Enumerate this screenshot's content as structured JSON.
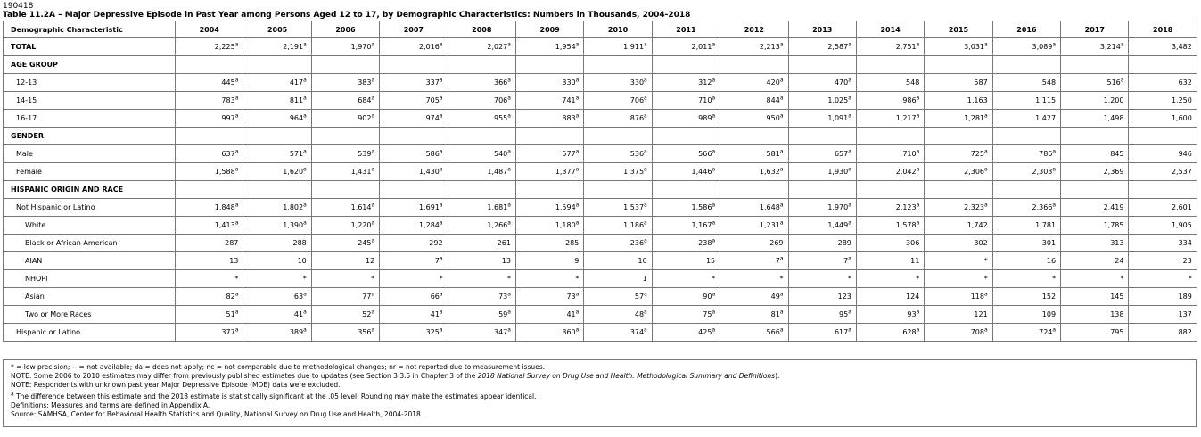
{
  "doc_id": "190418",
  "title": "Table 11.2A – Major Depressive Episode in Past Year among Persons Aged 12 to 17, by Demographic Characteristics: Numbers in Thousands, 2004-2018",
  "table": {
    "header_first": "Demographic Characteristic",
    "years": [
      "2004",
      "2005",
      "2006",
      "2007",
      "2008",
      "2009",
      "2010",
      "2011",
      "2012",
      "2013",
      "2014",
      "2015",
      "2016",
      "2017",
      "2018"
    ],
    "rows": [
      {
        "kind": "data",
        "level": 0,
        "bold": true,
        "label": "TOTAL",
        "values": [
          [
            "2,225",
            "a"
          ],
          [
            "2,191",
            "a"
          ],
          [
            "1,970",
            "a"
          ],
          [
            "2,016",
            "a"
          ],
          [
            "2,027",
            "a"
          ],
          [
            "1,954",
            "a"
          ],
          [
            "1,911",
            "a"
          ],
          [
            "2,011",
            "a"
          ],
          [
            "2,213",
            "a"
          ],
          [
            "2,587",
            "a"
          ],
          [
            "2,751",
            "a"
          ],
          [
            "3,031",
            "a"
          ],
          [
            "3,089",
            "a"
          ],
          [
            "3,214",
            "a"
          ],
          [
            "3,482",
            ""
          ]
        ]
      },
      {
        "kind": "heading",
        "label": "AGE GROUP"
      },
      {
        "kind": "data",
        "level": 1,
        "label": "12-13",
        "values": [
          [
            "445",
            "a"
          ],
          [
            "417",
            "a"
          ],
          [
            "383",
            "a"
          ],
          [
            "337",
            "a"
          ],
          [
            "366",
            "a"
          ],
          [
            "330",
            "a"
          ],
          [
            "330",
            "a"
          ],
          [
            "312",
            "a"
          ],
          [
            "420",
            "a"
          ],
          [
            "470",
            "a"
          ],
          [
            "548",
            ""
          ],
          [
            "587",
            ""
          ],
          [
            "548",
            ""
          ],
          [
            "516",
            "a"
          ],
          [
            "632",
            ""
          ]
        ]
      },
      {
        "kind": "data",
        "level": 1,
        "label": "14-15",
        "values": [
          [
            "783",
            "a"
          ],
          [
            "811",
            "a"
          ],
          [
            "684",
            "a"
          ],
          [
            "705",
            "a"
          ],
          [
            "706",
            "a"
          ],
          [
            "741",
            "a"
          ],
          [
            "706",
            "a"
          ],
          [
            "710",
            "a"
          ],
          [
            "844",
            "a"
          ],
          [
            "1,025",
            "a"
          ],
          [
            "986",
            "a"
          ],
          [
            "1,163",
            ""
          ],
          [
            "1,115",
            ""
          ],
          [
            "1,200",
            ""
          ],
          [
            "1,250",
            ""
          ]
        ]
      },
      {
        "kind": "data",
        "level": 1,
        "label": "16-17",
        "values": [
          [
            "997",
            "a"
          ],
          [
            "964",
            "a"
          ],
          [
            "902",
            "a"
          ],
          [
            "974",
            "a"
          ],
          [
            "955",
            "a"
          ],
          [
            "883",
            "a"
          ],
          [
            "876",
            "a"
          ],
          [
            "989",
            "a"
          ],
          [
            "950",
            "a"
          ],
          [
            "1,091",
            "a"
          ],
          [
            "1,217",
            "a"
          ],
          [
            "1,281",
            "a"
          ],
          [
            "1,427",
            ""
          ],
          [
            "1,498",
            ""
          ],
          [
            "1,600",
            ""
          ]
        ]
      },
      {
        "kind": "heading",
        "label": "GENDER"
      },
      {
        "kind": "data",
        "level": 1,
        "label": "Male",
        "values": [
          [
            "637",
            "a"
          ],
          [
            "571",
            "a"
          ],
          [
            "539",
            "a"
          ],
          [
            "586",
            "a"
          ],
          [
            "540",
            "a"
          ],
          [
            "577",
            "a"
          ],
          [
            "536",
            "a"
          ],
          [
            "566",
            "a"
          ],
          [
            "581",
            "a"
          ],
          [
            "657",
            "a"
          ],
          [
            "710",
            "a"
          ],
          [
            "725",
            "a"
          ],
          [
            "786",
            "a"
          ],
          [
            "845",
            ""
          ],
          [
            "946",
            ""
          ]
        ]
      },
      {
        "kind": "data",
        "level": 1,
        "label": "Female",
        "values": [
          [
            "1,588",
            "a"
          ],
          [
            "1,620",
            "a"
          ],
          [
            "1,431",
            "a"
          ],
          [
            "1,430",
            "a"
          ],
          [
            "1,487",
            "a"
          ],
          [
            "1,377",
            "a"
          ],
          [
            "1,375",
            "a"
          ],
          [
            "1,446",
            "a"
          ],
          [
            "1,632",
            "a"
          ],
          [
            "1,930",
            "a"
          ],
          [
            "2,042",
            "a"
          ],
          [
            "2,306",
            "a"
          ],
          [
            "2,303",
            "a"
          ],
          [
            "2,369",
            ""
          ],
          [
            "2,537",
            ""
          ]
        ]
      },
      {
        "kind": "heading",
        "label": "HISPANIC ORIGIN AND RACE"
      },
      {
        "kind": "data",
        "level": 1,
        "label": "Not Hispanic or Latino",
        "values": [
          [
            "1,848",
            "a"
          ],
          [
            "1,802",
            "a"
          ],
          [
            "1,614",
            "a"
          ],
          [
            "1,691",
            "a"
          ],
          [
            "1,681",
            "a"
          ],
          [
            "1,594",
            "a"
          ],
          [
            "1,537",
            "a"
          ],
          [
            "1,586",
            "a"
          ],
          [
            "1,648",
            "a"
          ],
          [
            "1,970",
            "a"
          ],
          [
            "2,123",
            "a"
          ],
          [
            "2,323",
            "a"
          ],
          [
            "2,366",
            "a"
          ],
          [
            "2,419",
            ""
          ],
          [
            "2,601",
            ""
          ]
        ]
      },
      {
        "kind": "data",
        "level": 2,
        "label": "White",
        "values": [
          [
            "1,413",
            "a"
          ],
          [
            "1,390",
            "a"
          ],
          [
            "1,220",
            "a"
          ],
          [
            "1,284",
            "a"
          ],
          [
            "1,266",
            "a"
          ],
          [
            "1,180",
            "a"
          ],
          [
            "1,186",
            "a"
          ],
          [
            "1,167",
            "a"
          ],
          [
            "1,231",
            "a"
          ],
          [
            "1,449",
            "a"
          ],
          [
            "1,578",
            "a"
          ],
          [
            "1,742",
            ""
          ],
          [
            "1,781",
            ""
          ],
          [
            "1,785",
            ""
          ],
          [
            "1,905",
            ""
          ]
        ]
      },
      {
        "kind": "data",
        "level": 2,
        "label": "Black or African American",
        "values": [
          [
            "287",
            ""
          ],
          [
            "288",
            ""
          ],
          [
            "245",
            "a"
          ],
          [
            "292",
            ""
          ],
          [
            "261",
            ""
          ],
          [
            "285",
            ""
          ],
          [
            "236",
            "a"
          ],
          [
            "238",
            "a"
          ],
          [
            "269",
            ""
          ],
          [
            "289",
            ""
          ],
          [
            "306",
            ""
          ],
          [
            "302",
            ""
          ],
          [
            "301",
            ""
          ],
          [
            "313",
            ""
          ],
          [
            "334",
            ""
          ]
        ]
      },
      {
        "kind": "data",
        "level": 2,
        "label": "AIAN",
        "values": [
          [
            "13",
            ""
          ],
          [
            "10",
            ""
          ],
          [
            "12",
            ""
          ],
          [
            "7",
            "a"
          ],
          [
            "13",
            ""
          ],
          [
            "9",
            ""
          ],
          [
            "10",
            ""
          ],
          [
            "15",
            ""
          ],
          [
            "7",
            "a"
          ],
          [
            "7",
            "a"
          ],
          [
            "11",
            ""
          ],
          [
            "*",
            ""
          ],
          [
            "16",
            ""
          ],
          [
            "24",
            ""
          ],
          [
            "23",
            ""
          ]
        ]
      },
      {
        "kind": "data",
        "level": 2,
        "label": "NHOPI",
        "values": [
          [
            "*",
            ""
          ],
          [
            "*",
            ""
          ],
          [
            "*",
            ""
          ],
          [
            "*",
            ""
          ],
          [
            "*",
            ""
          ],
          [
            "*",
            ""
          ],
          [
            "1",
            ""
          ],
          [
            "*",
            ""
          ],
          [
            "*",
            ""
          ],
          [
            "*",
            ""
          ],
          [
            "*",
            ""
          ],
          [
            "*",
            ""
          ],
          [
            "*",
            ""
          ],
          [
            "*",
            ""
          ],
          [
            "*",
            ""
          ]
        ]
      },
      {
        "kind": "data",
        "level": 2,
        "label": "Asian",
        "values": [
          [
            "82",
            "a"
          ],
          [
            "63",
            "a"
          ],
          [
            "77",
            "a"
          ],
          [
            "66",
            "a"
          ],
          [
            "73",
            "a"
          ],
          [
            "73",
            "a"
          ],
          [
            "57",
            "a"
          ],
          [
            "90",
            "a"
          ],
          [
            "49",
            "a"
          ],
          [
            "123",
            ""
          ],
          [
            "124",
            ""
          ],
          [
            "118",
            "a"
          ],
          [
            "152",
            ""
          ],
          [
            "145",
            ""
          ],
          [
            "189",
            ""
          ]
        ]
      },
      {
        "kind": "data",
        "level": 2,
        "label": "Two or More Races",
        "values": [
          [
            "51",
            "a"
          ],
          [
            "41",
            "a"
          ],
          [
            "52",
            "a"
          ],
          [
            "41",
            "a"
          ],
          [
            "59",
            "a"
          ],
          [
            "41",
            "a"
          ],
          [
            "48",
            "a"
          ],
          [
            "75",
            "a"
          ],
          [
            "81",
            "a"
          ],
          [
            "95",
            "a"
          ],
          [
            "93",
            "a"
          ],
          [
            "121",
            ""
          ],
          [
            "109",
            ""
          ],
          [
            "138",
            ""
          ],
          [
            "137",
            ""
          ]
        ]
      },
      {
        "kind": "data",
        "level": 1,
        "label": "Hispanic or Latino",
        "values": [
          [
            "377",
            "a"
          ],
          [
            "389",
            "a"
          ],
          [
            "356",
            "a"
          ],
          [
            "325",
            "a"
          ],
          [
            "347",
            "a"
          ],
          [
            "360",
            "a"
          ],
          [
            "374",
            "a"
          ],
          [
            "425",
            "a"
          ],
          [
            "566",
            "a"
          ],
          [
            "617",
            "a"
          ],
          [
            "628",
            "a"
          ],
          [
            "708",
            "a"
          ],
          [
            "724",
            "a"
          ],
          [
            "795",
            ""
          ],
          [
            "882",
            ""
          ]
        ]
      }
    ]
  },
  "notes": {
    "line1": "* = low precision; -- = not available; da = does not apply; nc = not comparable due to methodological changes; nr = not reported due to measurement issues.",
    "line2_pre": "NOTE: Some 2006 to 2010 estimates may differ from previously published estimates due to updates (see Section 3.3.5 in Chapter 3 of the ",
    "line2_italic": "2018 National Survey on Drug Use and Health: Methodological Summary and Definitions",
    "line2_post": ").",
    "line3": "NOTE: Respondents with unknown past year Major Depressive Episode (MDE) data were excluded.",
    "footnote_marker": "a",
    "line4": " The difference between this estimate and the 2018 estimate is statistically significant at the .05 level. Rounding may make the estimates appear identical.",
    "line5": "Definitions: Measures and terms are defined in Appendix A.",
    "line6": "Source: SAMHSA, Center for Behavioral Health Statistics and Quality, National Survey on Drug Use and Health, 2004-2018."
  }
}
